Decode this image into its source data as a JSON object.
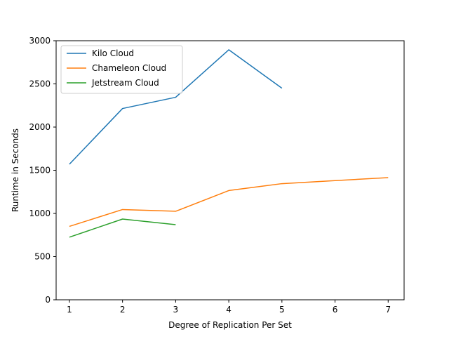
{
  "chart_data": {
    "type": "line",
    "title": "",
    "xlabel": "Degree of Replication Per Set",
    "ylabel": "Runtime in Seconds",
    "xlim": [
      0.75,
      7.3
    ],
    "ylim": [
      0,
      3000
    ],
    "xticks": [
      1,
      2,
      3,
      4,
      5,
      6,
      7
    ],
    "yticks": [
      0,
      500,
      1000,
      1500,
      2000,
      2500,
      3000
    ],
    "grid": false,
    "legend_position": "top-left",
    "series": [
      {
        "name": "Kilo Cloud",
        "color": "#1f77b4",
        "x": [
          1,
          2,
          3,
          4,
          5
        ],
        "y": [
          1570,
          2215,
          2345,
          2895,
          2450
        ]
      },
      {
        "name": "Chameleon Cloud",
        "color": "#ff7f0e",
        "x": [
          1,
          2,
          3,
          4,
          5,
          6,
          7
        ],
        "y": [
          850,
          1045,
          1025,
          1265,
          1345,
          1380,
          1415
        ]
      },
      {
        "name": "Jetstream Cloud",
        "color": "#2ca02c",
        "x": [
          1,
          2,
          3
        ],
        "y": [
          725,
          935,
          870
        ]
      }
    ]
  }
}
